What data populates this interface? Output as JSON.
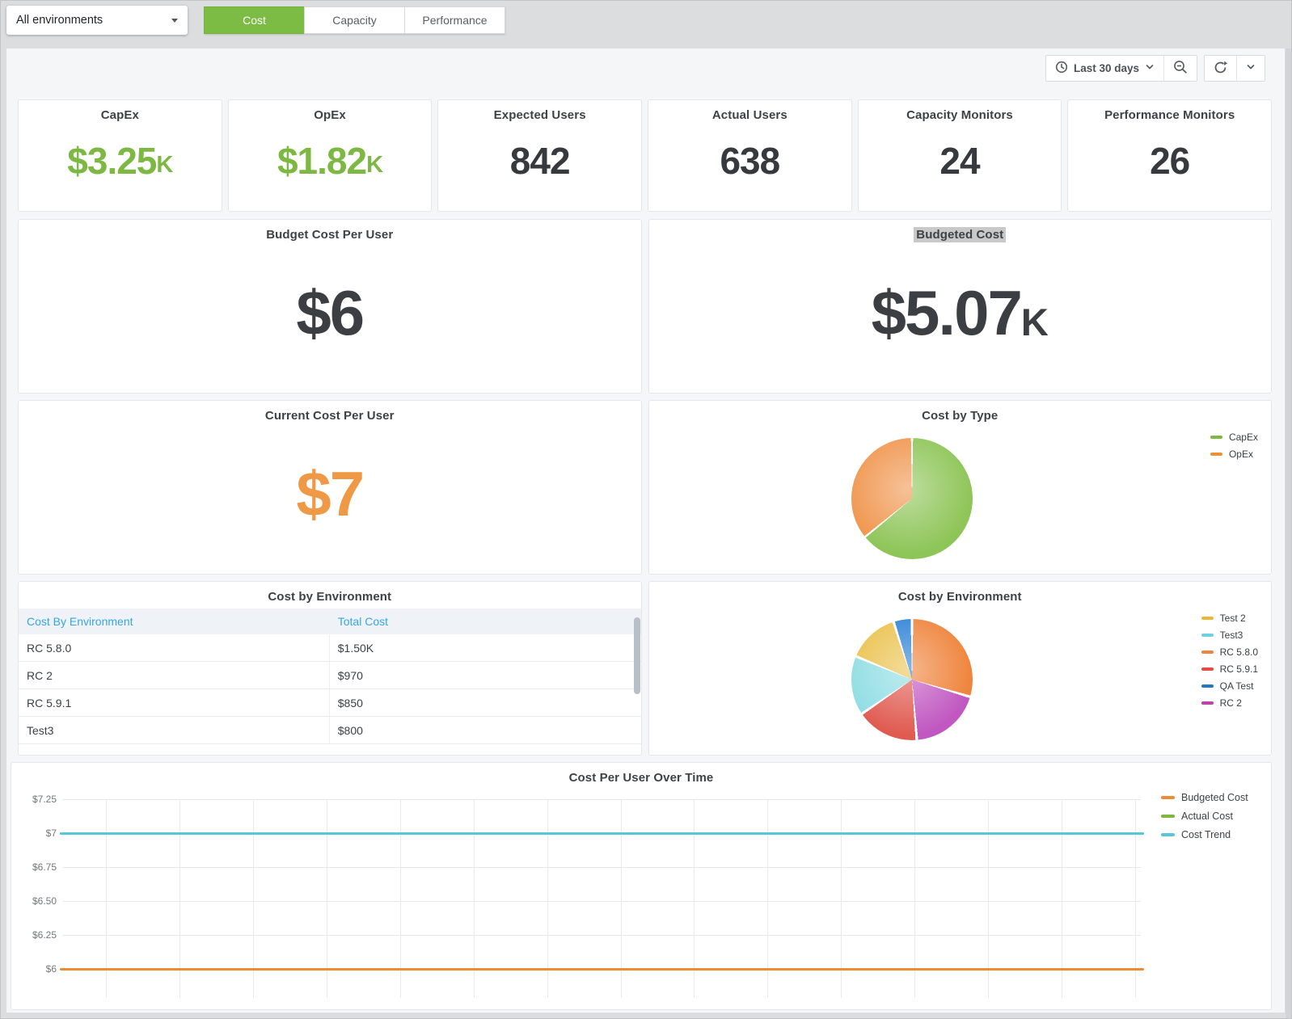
{
  "topbar": {
    "environment_select": {
      "value": "All environments"
    },
    "tabs": [
      {
        "label": "Cost",
        "active": true
      },
      {
        "label": "Capacity",
        "active": false
      },
      {
        "label": "Performance",
        "active": false
      }
    ]
  },
  "toolbar": {
    "time_range_label": "Last 30 days"
  },
  "stat_panels": [
    {
      "title": "CapEx",
      "value": "$3.25",
      "suffix": "K",
      "color": "#7db843"
    },
    {
      "title": "OpEx",
      "value": "$1.82",
      "suffix": "K",
      "color": "#7db843"
    },
    {
      "title": "Expected Users",
      "value": "842",
      "suffix": "",
      "color": "#36393d"
    },
    {
      "title": "Actual Users",
      "value": "638",
      "suffix": "",
      "color": "#36393d"
    },
    {
      "title": "Capacity Monitors",
      "value": "24",
      "suffix": "",
      "color": "#36393d"
    },
    {
      "title": "Performance Monitors",
      "value": "26",
      "suffix": "",
      "color": "#36393d"
    }
  ],
  "panels": {
    "budget_cost_per_user": {
      "title": "Budget Cost Per User",
      "value": "$6"
    },
    "budgeted_cost": {
      "title": "Budgeted Cost",
      "value": "$5.07",
      "suffix": "K"
    },
    "current_cost_per_user": {
      "title": "Current Cost Per User",
      "value": "$7",
      "color": "#ef9846"
    },
    "cost_by_environment_table": {
      "title": "Cost by Environment",
      "headers": [
        "Cost By Environment",
        "Total Cost"
      ],
      "rows": [
        [
          "RC 5.8.0",
          "$1.50K"
        ],
        [
          "RC 2",
          "$970"
        ],
        [
          "RC 5.9.1",
          "$850"
        ],
        [
          "Test3",
          "$800"
        ]
      ]
    }
  },
  "chart_data": [
    {
      "id": "cost-by-type",
      "type": "pie",
      "title": "Cost by Type",
      "legend_position": "right",
      "slices": [
        {
          "label": "CapEx",
          "value": 3250,
          "color": "#8ec558"
        },
        {
          "label": "OpEx",
          "value": 1820,
          "color": "#f0954d"
        }
      ],
      "legend": [
        {
          "label": "CapEx",
          "color": "#7db843"
        },
        {
          "label": "OpEx",
          "color": "#ef8f38"
        }
      ]
    },
    {
      "id": "cost-by-environment",
      "type": "pie",
      "title": "Cost by Environment",
      "legend_position": "right",
      "slices": [
        {
          "label": "RC 5.8.0",
          "value": 1500,
          "color": "#ef843c"
        },
        {
          "label": "RC 2",
          "value": 970,
          "color": "#c158c1"
        },
        {
          "label": "RC 5.9.1",
          "value": 850,
          "color": "#e05a50"
        },
        {
          "label": "Test3",
          "value": 800,
          "color": "#8fdde4"
        },
        {
          "label": "Test 2",
          "value": 700,
          "color": "#eac24e"
        },
        {
          "label": "QA Test",
          "value": 250,
          "color": "#2e82d6"
        }
      ],
      "legend": [
        {
          "label": "Test 2",
          "color": "#eab839"
        },
        {
          "label": "Test3",
          "color": "#6ed0e0"
        },
        {
          "label": "RC 5.8.0",
          "color": "#ef843c"
        },
        {
          "label": "RC 5.9.1",
          "color": "#e24d42"
        },
        {
          "label": "QA Test",
          "color": "#1f78c1"
        },
        {
          "label": "RC 2",
          "color": "#ba43a9"
        }
      ]
    },
    {
      "id": "cost-per-user-over-time",
      "type": "line",
      "title": "Cost Per User Over Time",
      "y_ticks": [
        "$7.25",
        "$7",
        "$6.75",
        "$6.50",
        "$6.25",
        "$6"
      ],
      "y_range": [
        6.0,
        7.25
      ],
      "x_gridlines": 15,
      "grid": true,
      "legend_position": "right",
      "series": [
        {
          "name": "Budgeted Cost",
          "color": "#ee8c35",
          "value": 6.0
        },
        {
          "name": "Actual Cost",
          "color": "#7db843",
          "value": 7.0
        },
        {
          "name": "Cost Trend",
          "color": "#56c7d9",
          "value": 7.0
        }
      ]
    }
  ]
}
